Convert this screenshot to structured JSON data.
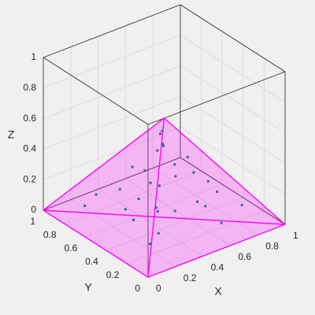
{
  "chart_data": {
    "type": "scatter3d",
    "xlabel": "X",
    "ylabel": "Y",
    "zlabel": "Z",
    "xlim": [
      0,
      1
    ],
    "ylim": [
      0,
      1
    ],
    "zlim": [
      0,
      1
    ],
    "xticks": [
      0,
      0.2,
      0.4,
      0.6,
      0.8,
      1
    ],
    "yticks": [
      0,
      0.2,
      0.4,
      0.6,
      0.8,
      1
    ],
    "zticks": [
      0,
      0.2,
      0.4,
      0.6,
      0.8,
      1
    ],
    "grid": true,
    "color": "#3a5fa8",
    "x": [
      0.2,
      0.35,
      0.45,
      0.55,
      0.65,
      0.4,
      0.5,
      0.275,
      0.45,
      0.175,
      0.675,
      0.325,
      0.47,
      0.525,
      0.8,
      0.15,
      0.325,
      0.3,
      0.575,
      0.25,
      0.51,
      0.475,
      0.36,
      0.6,
      0.265,
      0.32,
      0.64,
      0.19,
      0.475,
      0.66
    ],
    "y": [
      0.4,
      0.35,
      0.45,
      0.25,
      0.15,
      0.5,
      0.4,
      0.575,
      0.5,
      0.725,
      0.225,
      0.325,
      0.48,
      0.425,
      0.15,
      0.8,
      0.575,
      0.3,
      0.375,
      0.25,
      0.41,
      0.475,
      0.56,
      0.35,
      0.615,
      0.45,
      0.29,
      0.23,
      0.505,
      0.29
    ],
    "z": [
      0.13,
      0.325,
      0.52,
      0.195,
      0.065,
      0.26,
      0.39,
      0.098,
      0.455,
      0.163,
      0.228,
      0.033,
      0.585,
      0.293,
      0.13,
      0.065,
      0.358,
      0.195,
      0.423,
      0.26,
      0.078,
      0.488,
      0.143,
      0.325,
      0.215,
      0.39,
      0.117,
      0.052,
      0.553,
      0.273
    ],
    "surface": {
      "color": "#ff00ff",
      "vertices": [
        [
          0,
          0,
          0
        ],
        [
          1,
          0,
          0
        ],
        [
          0,
          1,
          0
        ],
        [
          0.5,
          0.5,
          0.65
        ]
      ],
      "faces": [
        [
          0,
          1,
          2
        ],
        [
          0,
          1,
          3
        ],
        [
          0,
          2,
          3
        ],
        [
          1,
          2,
          3
        ]
      ]
    }
  }
}
